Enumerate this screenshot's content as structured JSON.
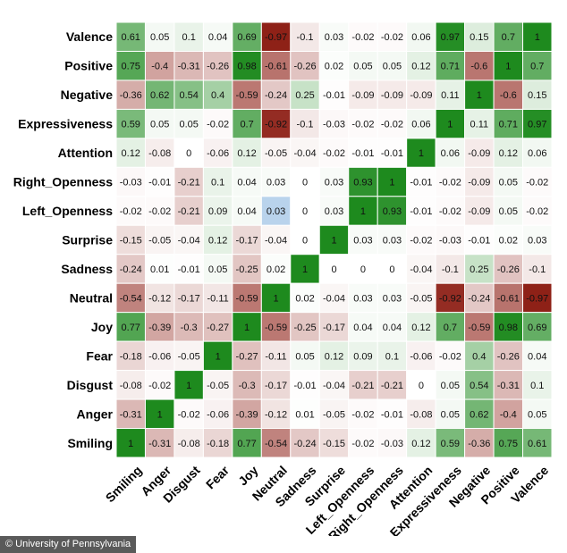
{
  "chart_data": {
    "type": "heatmap",
    "title": "",
    "rows": [
      "Valence",
      "Positive",
      "Negative",
      "Expressiveness",
      "Attention",
      "Right_Openness",
      "Left_Openness",
      "Surprise",
      "Sadness",
      "Neutral",
      "Joy",
      "Fear",
      "Disgust",
      "Anger",
      "Smiling"
    ],
    "columns": [
      "Smiling",
      "Anger",
      "Disgust",
      "Fear",
      "Joy",
      "Neutral",
      "Sadness",
      "Surprise",
      "Left_Openness",
      "Right_Openness",
      "Attention",
      "Expressiveness",
      "Negative",
      "Positive",
      "Valence"
    ],
    "values": [
      [
        0.61,
        0.05,
        0.1,
        0.04,
        0.69,
        -0.97,
        -0.1,
        0.03,
        -0.02,
        -0.02,
        0.06,
        0.97,
        0.15,
        0.7,
        1
      ],
      [
        0.75,
        -0.4,
        -0.31,
        -0.26,
        0.98,
        -0.61,
        -0.26,
        0.02,
        0.05,
        0.05,
        0.12,
        0.71,
        -0.6,
        1,
        0.7
      ],
      [
        -0.36,
        0.62,
        0.54,
        0.4,
        -0.59,
        -0.24,
        0.25,
        -0.01,
        -0.09,
        -0.09,
        -0.09,
        0.11,
        1,
        -0.6,
        0.15
      ],
      [
        0.59,
        0.05,
        0.05,
        -0.02,
        0.7,
        -0.92,
        -0.1,
        -0.03,
        -0.02,
        -0.02,
        0.06,
        1,
        0.11,
        0.71,
        0.97
      ],
      [
        0.12,
        -0.08,
        0,
        -0.06,
        0.12,
        -0.05,
        -0.04,
        -0.02,
        -0.01,
        -0.01,
        1,
        0.06,
        -0.09,
        0.12,
        0.06
      ],
      [
        -0.03,
        -0.01,
        -0.21,
        0.1,
        0.04,
        0.03,
        0,
        0.03,
        0.93,
        1,
        -0.01,
        -0.02,
        -0.09,
        0.05,
        -0.02
      ],
      [
        -0.02,
        -0.02,
        -0.21,
        0.09,
        0.04,
        0.03,
        0,
        0.03,
        1,
        0.93,
        -0.01,
        -0.02,
        -0.09,
        0.05,
        -0.02
      ],
      [
        -0.15,
        -0.05,
        -0.04,
        0.12,
        -0.17,
        -0.04,
        0,
        1,
        0.03,
        0.03,
        -0.02,
        -0.03,
        -0.01,
        0.02,
        0.03
      ],
      [
        -0.24,
        0.01,
        -0.01,
        0.05,
        -0.25,
        0.02,
        1,
        0,
        0,
        0,
        -0.04,
        -0.1,
        0.25,
        -0.26,
        -0.1
      ],
      [
        -0.54,
        -0.12,
        -0.17,
        -0.11,
        -0.59,
        1,
        0.02,
        -0.04,
        0.03,
        0.03,
        -0.05,
        -0.92,
        -0.24,
        -0.61,
        -0.97
      ],
      [
        0.77,
        -0.39,
        -0.3,
        -0.27,
        1,
        -0.59,
        -0.25,
        -0.17,
        0.04,
        0.04,
        0.12,
        0.7,
        -0.59,
        0.98,
        0.69
      ],
      [
        -0.18,
        -0.06,
        -0.05,
        1,
        -0.27,
        -0.11,
        0.05,
        0.12,
        0.09,
        0.1,
        -0.06,
        -0.02,
        0.4,
        -0.26,
        0.04
      ],
      [
        -0.08,
        -0.02,
        1,
        -0.05,
        -0.3,
        -0.17,
        -0.01,
        -0.04,
        -0.21,
        -0.21,
        0,
        0.05,
        0.54,
        -0.31,
        0.1
      ],
      [
        -0.31,
        1,
        -0.02,
        -0.06,
        -0.39,
        -0.12,
        0.01,
        -0.05,
        -0.02,
        -0.01,
        -0.08,
        0.05,
        0.62,
        -0.4,
        0.05
      ],
      [
        1,
        -0.31,
        -0.08,
        -0.18,
        0.77,
        -0.54,
        -0.24,
        -0.15,
        -0.02,
        -0.03,
        0.12,
        0.59,
        -0.36,
        0.75,
        0.61
      ]
    ],
    "value_range": [
      -1,
      1
    ],
    "color_scale": {
      "negative": "#8b1a10",
      "zero": "#ffffff",
      "positive": "#1e8a1e"
    },
    "highlighted_cell": {
      "row": "Left_Openness",
      "column": "Neutral",
      "color": "#b9d3ec"
    }
  },
  "credit": "© University of Pennsylvania"
}
